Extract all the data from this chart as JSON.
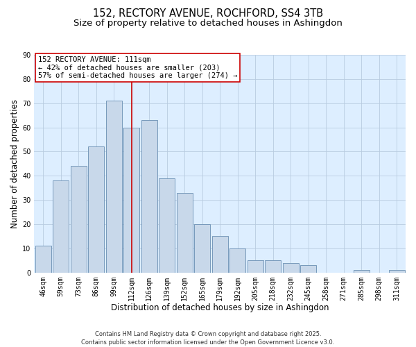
{
  "title": "152, RECTORY AVENUE, ROCHFORD, SS4 3TB",
  "subtitle": "Size of property relative to detached houses in Ashingdon",
  "xlabel": "Distribution of detached houses by size in Ashingdon",
  "ylabel": "Number of detached properties",
  "bin_labels": [
    "46sqm",
    "59sqm",
    "73sqm",
    "86sqm",
    "99sqm",
    "112sqm",
    "126sqm",
    "139sqm",
    "152sqm",
    "165sqm",
    "179sqm",
    "192sqm",
    "205sqm",
    "218sqm",
    "232sqm",
    "245sqm",
    "258sqm",
    "271sqm",
    "285sqm",
    "298sqm",
    "311sqm"
  ],
  "bar_values": [
    11,
    38,
    44,
    52,
    71,
    60,
    63,
    39,
    33,
    20,
    15,
    10,
    5,
    5,
    4,
    3,
    0,
    0,
    1,
    0,
    1
  ],
  "bar_color": "#c8d8ea",
  "bar_edge_color": "#7799bb",
  "vline_x_index": 5,
  "vline_color": "#cc0000",
  "annotation_title": "152 RECTORY AVENUE: 111sqm",
  "annotation_line1": "← 42% of detached houses are smaller (203)",
  "annotation_line2": "57% of semi-detached houses are larger (274) →",
  "annotation_box_facecolor": "#ffffff",
  "annotation_box_edgecolor": "#cc0000",
  "ylim": [
    0,
    90
  ],
  "yticks": [
    0,
    10,
    20,
    30,
    40,
    50,
    60,
    70,
    80,
    90
  ],
  "footer1": "Contains HM Land Registry data © Crown copyright and database right 2025.",
  "footer2": "Contains public sector information licensed under the Open Government Licence v3.0.",
  "background_color": "#ffffff",
  "plot_bg_color": "#ddeeff",
  "grid_color": "#b8cce0",
  "title_fontsize": 10.5,
  "subtitle_fontsize": 9.5,
  "axis_label_fontsize": 8.5,
  "tick_fontsize": 7,
  "annotation_fontsize": 7.5,
  "footer_fontsize": 6
}
